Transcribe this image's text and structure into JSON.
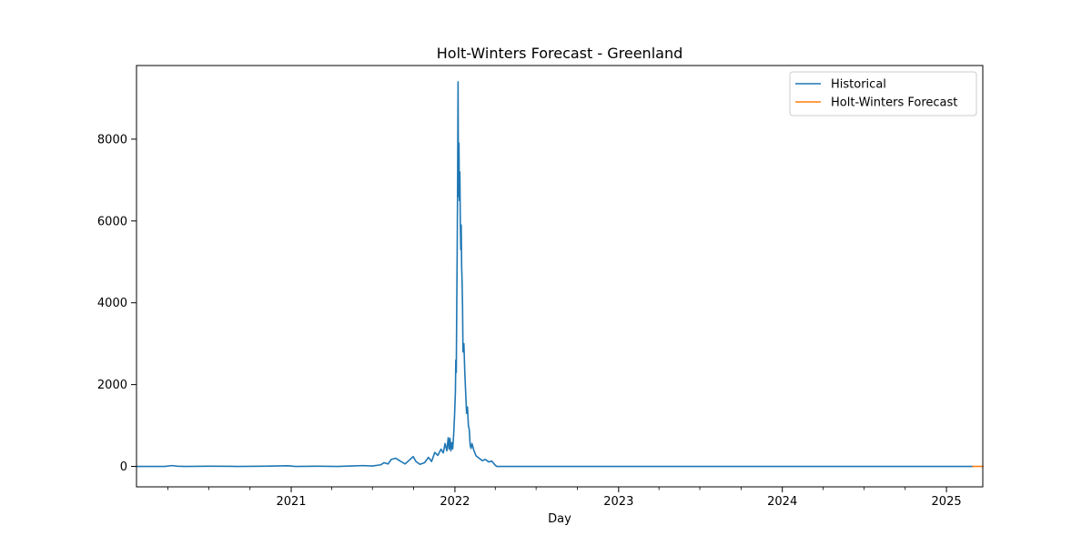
{
  "chart_data": {
    "type": "line",
    "title": "Holt-Winters Forecast - Greenland",
    "xlabel": "Day",
    "ylabel": "",
    "xlim": [
      "2020-01-22",
      "2025-03-23"
    ],
    "ylim": [
      -500,
      9800
    ],
    "x_ticks": [
      "2021-01-01",
      "2022-01-01",
      "2023-01-01",
      "2024-01-01",
      "2025-01-01"
    ],
    "x_tick_labels": [
      "2021",
      "2022",
      "2023",
      "2024",
      "2025"
    ],
    "y_ticks": [
      0,
      2000,
      4000,
      6000,
      8000
    ],
    "y_tick_labels": [
      "0",
      "2000",
      "4000",
      "6000",
      "8000"
    ],
    "grid": false,
    "legend_position": "top-right",
    "series": [
      {
        "name": "Historical",
        "color": "#1f77b4",
        "points": [
          [
            "2020-01-22",
            0
          ],
          [
            "2020-03-25",
            0
          ],
          [
            "2020-04-10",
            20
          ],
          [
            "2020-04-22",
            5
          ],
          [
            "2020-05-10",
            0
          ],
          [
            "2020-07-01",
            5
          ],
          [
            "2020-09-01",
            0
          ],
          [
            "2020-11-01",
            5
          ],
          [
            "2020-12-25",
            15
          ],
          [
            "2021-01-10",
            0
          ],
          [
            "2021-03-01",
            5
          ],
          [
            "2021-04-15",
            0
          ],
          [
            "2021-05-15",
            10
          ],
          [
            "2021-06-10",
            20
          ],
          [
            "2021-07-01",
            10
          ],
          [
            "2021-07-20",
            40
          ],
          [
            "2021-07-27",
            90
          ],
          [
            "2021-08-05",
            60
          ],
          [
            "2021-08-12",
            170
          ],
          [
            "2021-08-22",
            200
          ],
          [
            "2021-09-01",
            130
          ],
          [
            "2021-09-12",
            60
          ],
          [
            "2021-09-22",
            160
          ],
          [
            "2021-09-30",
            240
          ],
          [
            "2021-10-06",
            120
          ],
          [
            "2021-10-15",
            50
          ],
          [
            "2021-10-25",
            90
          ],
          [
            "2021-11-03",
            220
          ],
          [
            "2021-11-10",
            120
          ],
          [
            "2021-11-17",
            340
          ],
          [
            "2021-11-24",
            270
          ],
          [
            "2021-12-01",
            420
          ],
          [
            "2021-12-06",
            330
          ],
          [
            "2021-12-10",
            560
          ],
          [
            "2021-12-14",
            380
          ],
          [
            "2021-12-17",
            700
          ],
          [
            "2021-12-19",
            420
          ],
          [
            "2021-12-21",
            690
          ],
          [
            "2021-12-23",
            380
          ],
          [
            "2021-12-25",
            580
          ],
          [
            "2021-12-27",
            430
          ],
          [
            "2021-12-29",
            740
          ],
          [
            "2021-12-31",
            1200
          ],
          [
            "2022-01-02",
            1800
          ],
          [
            "2022-01-03",
            2600
          ],
          [
            "2022-01-04",
            2300
          ],
          [
            "2022-01-05",
            3800
          ],
          [
            "2022-01-06",
            5200
          ],
          [
            "2022-01-07",
            7000
          ],
          [
            "2022-01-08",
            9400
          ],
          [
            "2022-01-09",
            6600
          ],
          [
            "2022-01-10",
            7900
          ],
          [
            "2022-01-11",
            6500
          ],
          [
            "2022-01-12",
            7200
          ],
          [
            "2022-01-13",
            6000
          ],
          [
            "2022-01-14",
            5300
          ],
          [
            "2022-01-15",
            5900
          ],
          [
            "2022-01-16",
            4900
          ],
          [
            "2022-01-17",
            4500
          ],
          [
            "2022-01-18",
            3900
          ],
          [
            "2022-01-19",
            2800
          ],
          [
            "2022-01-21",
            3000
          ],
          [
            "2022-01-23",
            2300
          ],
          [
            "2022-01-25",
            1800
          ],
          [
            "2022-01-27",
            1300
          ],
          [
            "2022-01-29",
            1450
          ],
          [
            "2022-01-31",
            1000
          ],
          [
            "2022-02-02",
            900
          ],
          [
            "2022-02-04",
            520
          ],
          [
            "2022-02-06",
            440
          ],
          [
            "2022-02-08",
            560
          ],
          [
            "2022-02-12",
            400
          ],
          [
            "2022-02-17",
            260
          ],
          [
            "2022-02-24",
            200
          ],
          [
            "2022-03-03",
            140
          ],
          [
            "2022-03-10",
            170
          ],
          [
            "2022-03-17",
            110
          ],
          [
            "2022-03-24",
            130
          ],
          [
            "2022-03-31",
            40
          ],
          [
            "2022-04-04",
            0
          ],
          [
            "2025-03-01",
            0
          ]
        ]
      },
      {
        "name": "Holt-Winters Forecast",
        "color": "#ff7f0e",
        "points": [
          [
            "2025-03-01",
            0
          ],
          [
            "2025-03-23",
            0
          ]
        ]
      }
    ]
  }
}
